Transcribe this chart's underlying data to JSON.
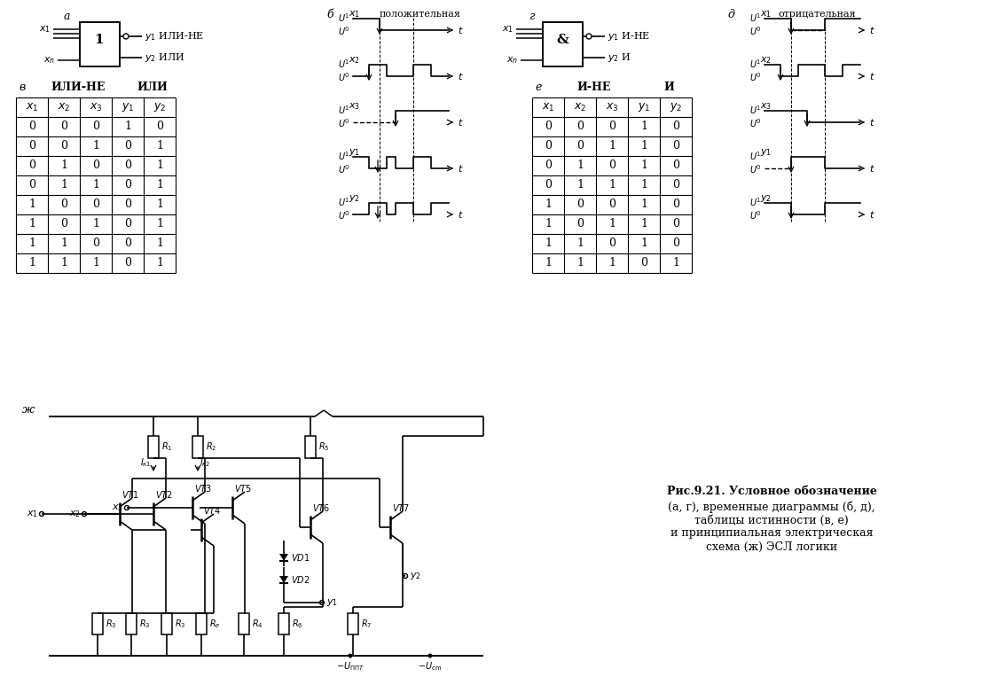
{
  "bg_color": "#ffffff",
  "caption_line1": "Рис.9.21. Условное обозначение",
  "caption_line2": "(а, г), временные диаграммы (б, д),",
  "caption_line3": "таблицы истинности (в, е)",
  "caption_line4": "и принципиальная электрическая",
  "caption_line5": "схема (ж) ЭСЛ логики",
  "label_a": "а",
  "label_b": "б",
  "label_v": "в",
  "label_g": "г",
  "label_d": "д",
  "label_e": "е",
  "label_zh": "ж",
  "label_polozhit": "положительная",
  "label_otrit": "отрицательная",
  "ili_ne": "ИЛИ-НЕ",
  "ili": "ИЛИ",
  "i_ne": "И-НЕ",
  "i_label": "И",
  "truth_v_rows": [
    [
      0,
      0,
      0,
      1,
      0
    ],
    [
      0,
      0,
      1,
      0,
      1
    ],
    [
      0,
      1,
      0,
      0,
      1
    ],
    [
      0,
      1,
      1,
      0,
      1
    ],
    [
      1,
      0,
      0,
      0,
      1
    ],
    [
      1,
      0,
      1,
      0,
      1
    ],
    [
      1,
      1,
      0,
      0,
      1
    ],
    [
      1,
      1,
      1,
      0,
      1
    ]
  ],
  "truth_e_rows": [
    [
      0,
      0,
      0,
      1,
      0
    ],
    [
      0,
      0,
      1,
      1,
      0
    ],
    [
      0,
      1,
      0,
      1,
      0
    ],
    [
      0,
      1,
      1,
      1,
      0
    ],
    [
      1,
      0,
      0,
      1,
      0
    ],
    [
      1,
      0,
      1,
      1,
      0
    ],
    [
      1,
      1,
      0,
      1,
      0
    ],
    [
      1,
      1,
      1,
      0,
      1
    ]
  ]
}
